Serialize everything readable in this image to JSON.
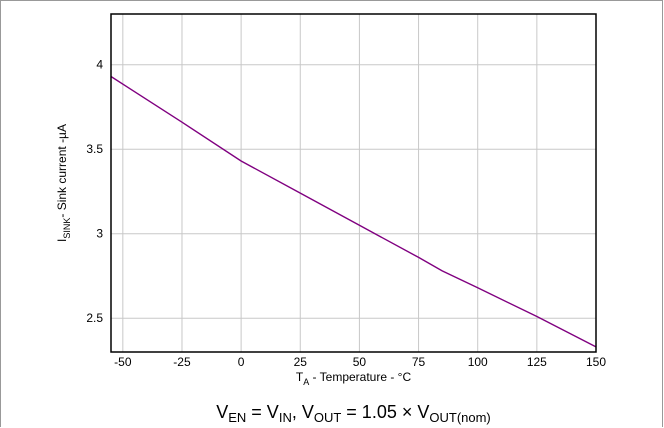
{
  "chart_data": {
    "type": "line",
    "xlabel": {
      "main": "T",
      "sub": "A",
      "rest": " - Temperature - °C"
    },
    "ylabel": {
      "main": "I",
      "sub": "SINK",
      "rest": "- Sink current -µA"
    },
    "xlim": [
      -55,
      150
    ],
    "ylim": [
      2.3,
      4.3
    ],
    "xticks": [
      -50,
      -25,
      0,
      25,
      50,
      75,
      100,
      125,
      150
    ],
    "yticks": [
      2.5,
      3,
      3.5,
      4
    ],
    "ytick_labels": [
      "2.5",
      "3",
      "3.5",
      "4"
    ],
    "grid": true,
    "series": [
      {
        "color": "#800080",
        "x": [
          -55,
          -25,
          0,
          25,
          50,
          75,
          85,
          100,
          125,
          150
        ],
        "y": [
          3.93,
          3.66,
          3.43,
          3.24,
          3.05,
          2.86,
          2.78,
          2.68,
          2.51,
          2.33
        ]
      }
    ],
    "caption": [
      {
        "t": "V",
        "s": false
      },
      {
        "t": "EN",
        "s": true
      },
      {
        "t": " = V",
        "s": false
      },
      {
        "t": "IN",
        "s": true
      },
      {
        "t": ", V",
        "s": false
      },
      {
        "t": "OUT",
        "s": true
      },
      {
        "t": " = 1.05 × V",
        "s": false
      },
      {
        "t": "OUT(nom)",
        "s": true
      }
    ]
  }
}
